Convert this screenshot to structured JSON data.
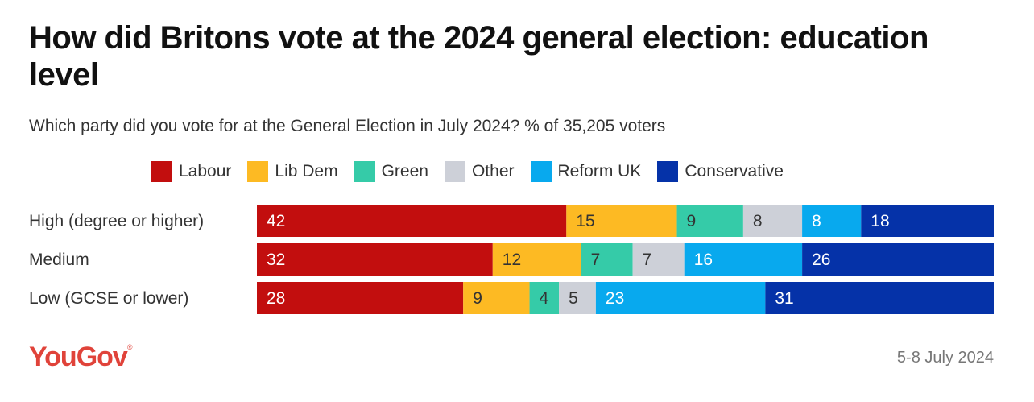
{
  "title": "How did Britons vote at the 2024 general election: education level",
  "subtitle": "Which party did you vote for at the General Election in July 2024? % of 35,205 voters",
  "footer": {
    "logo": "YouGov",
    "logo_mark": "®",
    "date": "5-8 July 2024"
  },
  "chart_data": {
    "type": "bar",
    "orientation": "horizontal",
    "stacked": true,
    "categories": [
      "High (degree or higher)",
      "Medium",
      "Low (GCSE or lower)"
    ],
    "series": [
      {
        "name": "Labour",
        "color": "#c20e0e",
        "label_color": "#ffffff",
        "values": [
          42,
          32,
          28
        ]
      },
      {
        "name": "Lib Dem",
        "color": "#fdba23",
        "label_color": "#333333",
        "values": [
          15,
          12,
          9
        ]
      },
      {
        "name": "Green",
        "color": "#35cba8",
        "label_color": "#333333",
        "values": [
          9,
          7,
          4
        ]
      },
      {
        "name": "Other",
        "color": "#cdd0d8",
        "label_color": "#333333",
        "values": [
          8,
          7,
          5
        ]
      },
      {
        "name": "Reform UK",
        "color": "#08a9ee",
        "label_color": "#ffffff",
        "values": [
          8,
          16,
          23
        ]
      },
      {
        "name": "Conservative",
        "color": "#0532a8",
        "label_color": "#ffffff",
        "values": [
          18,
          26,
          31
        ]
      }
    ],
    "xlim": [
      0,
      100
    ],
    "legend": "top",
    "grid": false
  }
}
